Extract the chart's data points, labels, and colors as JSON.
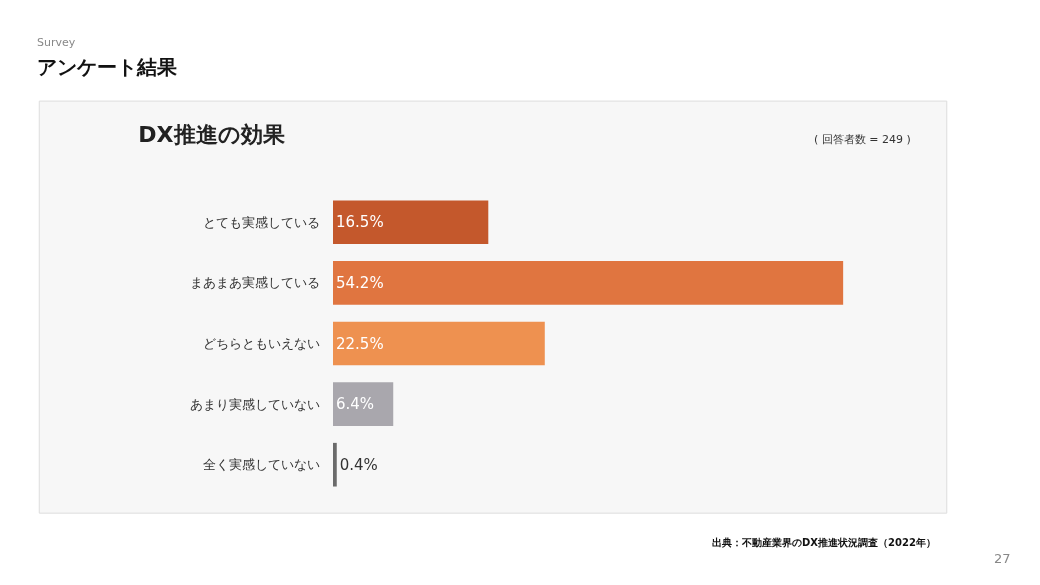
{
  "chart_data": {
    "type": "bar",
    "orientation": "horizontal",
    "title": "DX推進の効果",
    "categories": [
      "とても実感している",
      "まあまあ実感している",
      "どちらともいえない",
      "あまり実感していない",
      "全く実感していない"
    ],
    "values": [
      16.5,
      54.2,
      22.5,
      6.4,
      0.4
    ],
    "value_labels": [
      "16.5%",
      "54.2%",
      "22.5%",
      "6.4%",
      "0.4%"
    ],
    "colors": [
      "#c4582c",
      "#e07540",
      "#ee9150",
      "#a9a7ad",
      "#6b6b6b"
    ],
    "grid": false,
    "legend": false,
    "tick_labels": "y",
    "annotations": [
      "Survey",
      "アンケート結果",
      "( 回答者数 = 249 )",
      "出典：不動産業界のDX推進状況調査（2022年）",
      "27"
    ]
  }
}
